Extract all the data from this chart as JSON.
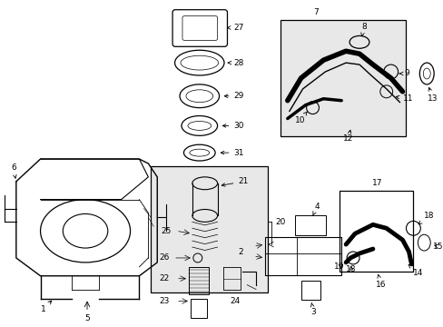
{
  "background_color": "#ffffff",
  "line_color": "#000000",
  "text_color": "#000000",
  "font_size": 6.5,
  "figsize": [
    4.89,
    3.6
  ],
  "dpi": 100
}
